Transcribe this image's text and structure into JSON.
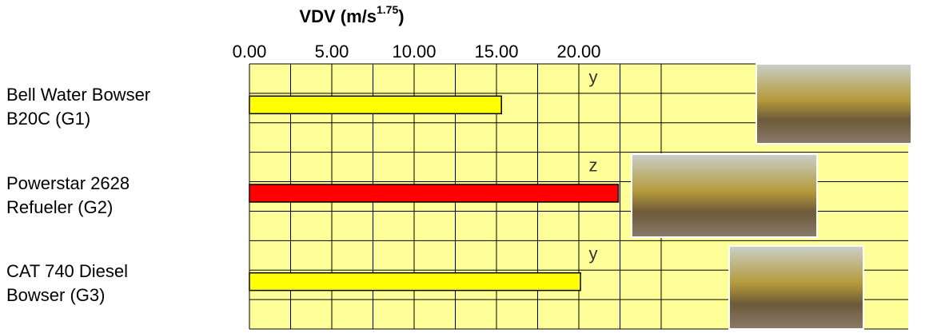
{
  "chart_data": {
    "type": "hbar",
    "title": {
      "text": "VDV (m/s",
      "superscript": "1.75",
      "suffix": ")"
    },
    "categories": [
      "Bell Water Bowser\nB20C (G1)",
      "Powerstar 2628\nRefueler (G2)",
      "CAT 740 Diesel\nBowser (G3)"
    ],
    "values": [
      15.3,
      22.4,
      20.1
    ],
    "colors": [
      "#ffff00",
      "#ff0000",
      "#ffff00"
    ],
    "annotations": [
      "y",
      "z",
      "y"
    ],
    "xlim": [
      0,
      40
    ],
    "xticks": [
      {
        "value": 0,
        "label": "0.00"
      },
      {
        "value": 5,
        "label": "5.00"
      },
      {
        "value": 10,
        "label": "10.00"
      },
      {
        "value": 15,
        "label": "15.00"
      },
      {
        "value": 20,
        "label": "20.00"
      }
    ],
    "xgrid": [
      0,
      2.5,
      5,
      7.5,
      10,
      12.5,
      15,
      17.5,
      20,
      22.5,
      25
    ],
    "plot_background": "#ffff99",
    "grid": true
  }
}
